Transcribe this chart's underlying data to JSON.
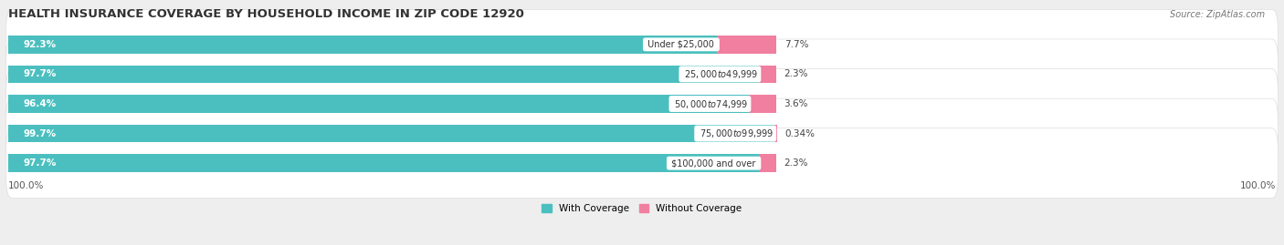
{
  "title": "HEALTH INSURANCE COVERAGE BY HOUSEHOLD INCOME IN ZIP CODE 12920",
  "source": "Source: ZipAtlas.com",
  "categories": [
    "Under $25,000",
    "$25,000 to $49,999",
    "$50,000 to $74,999",
    "$75,000 to $99,999",
    "$100,000 and over"
  ],
  "with_coverage": [
    92.3,
    97.7,
    96.4,
    99.7,
    97.7
  ],
  "without_coverage": [
    7.7,
    2.3,
    3.6,
    0.34,
    2.3
  ],
  "color_with": "#4BBFBF",
  "color_without": "#F07FA0",
  "background_color": "#EEEEEE",
  "row_bg_color": "#FFFFFF",
  "title_fontsize": 9.5,
  "label_fontsize": 7.5,
  "tick_fontsize": 7.5,
  "legend_fontsize": 7.5,
  "bar_height": 0.6,
  "total_width": 100.0,
  "x_left_label": "100.0%",
  "x_right_label": "100.0%"
}
